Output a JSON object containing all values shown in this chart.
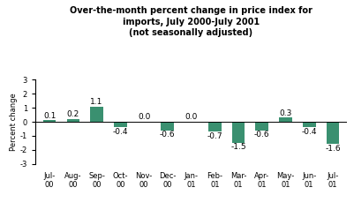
{
  "categories": [
    "Jul-\n00",
    "Aug-\n00",
    "Sep-\n00",
    "Oct-\n00",
    "Nov-\n00",
    "Dec-\n00",
    "Jan-\n01",
    "Feb-\n01",
    "Mar-\n01",
    "Apr-\n01",
    "May-\n01",
    "Jun-\n01",
    "Jul-\n01"
  ],
  "values": [
    0.1,
    0.2,
    1.1,
    -0.4,
    0.0,
    -0.6,
    0.0,
    -0.7,
    -1.5,
    -0.6,
    0.3,
    -0.4,
    -1.6
  ],
  "bar_color": "#3a9070",
  "title_line1": "Over-the-month percent change in price index for",
  "title_line2": "imports, July 2000-July 2001",
  "title_line3": "(not seasonally adjusted)",
  "ylabel": "Percent change",
  "ylim": [
    -3,
    3
  ],
  "yticks": [
    -3,
    -2,
    -1,
    0,
    1,
    2,
    3
  ],
  "background_color": "#ffffff",
  "title_fontsize": 7.0,
  "label_fontsize": 6.5,
  "tick_fontsize": 6.0,
  "ylabel_fontsize": 6.0
}
